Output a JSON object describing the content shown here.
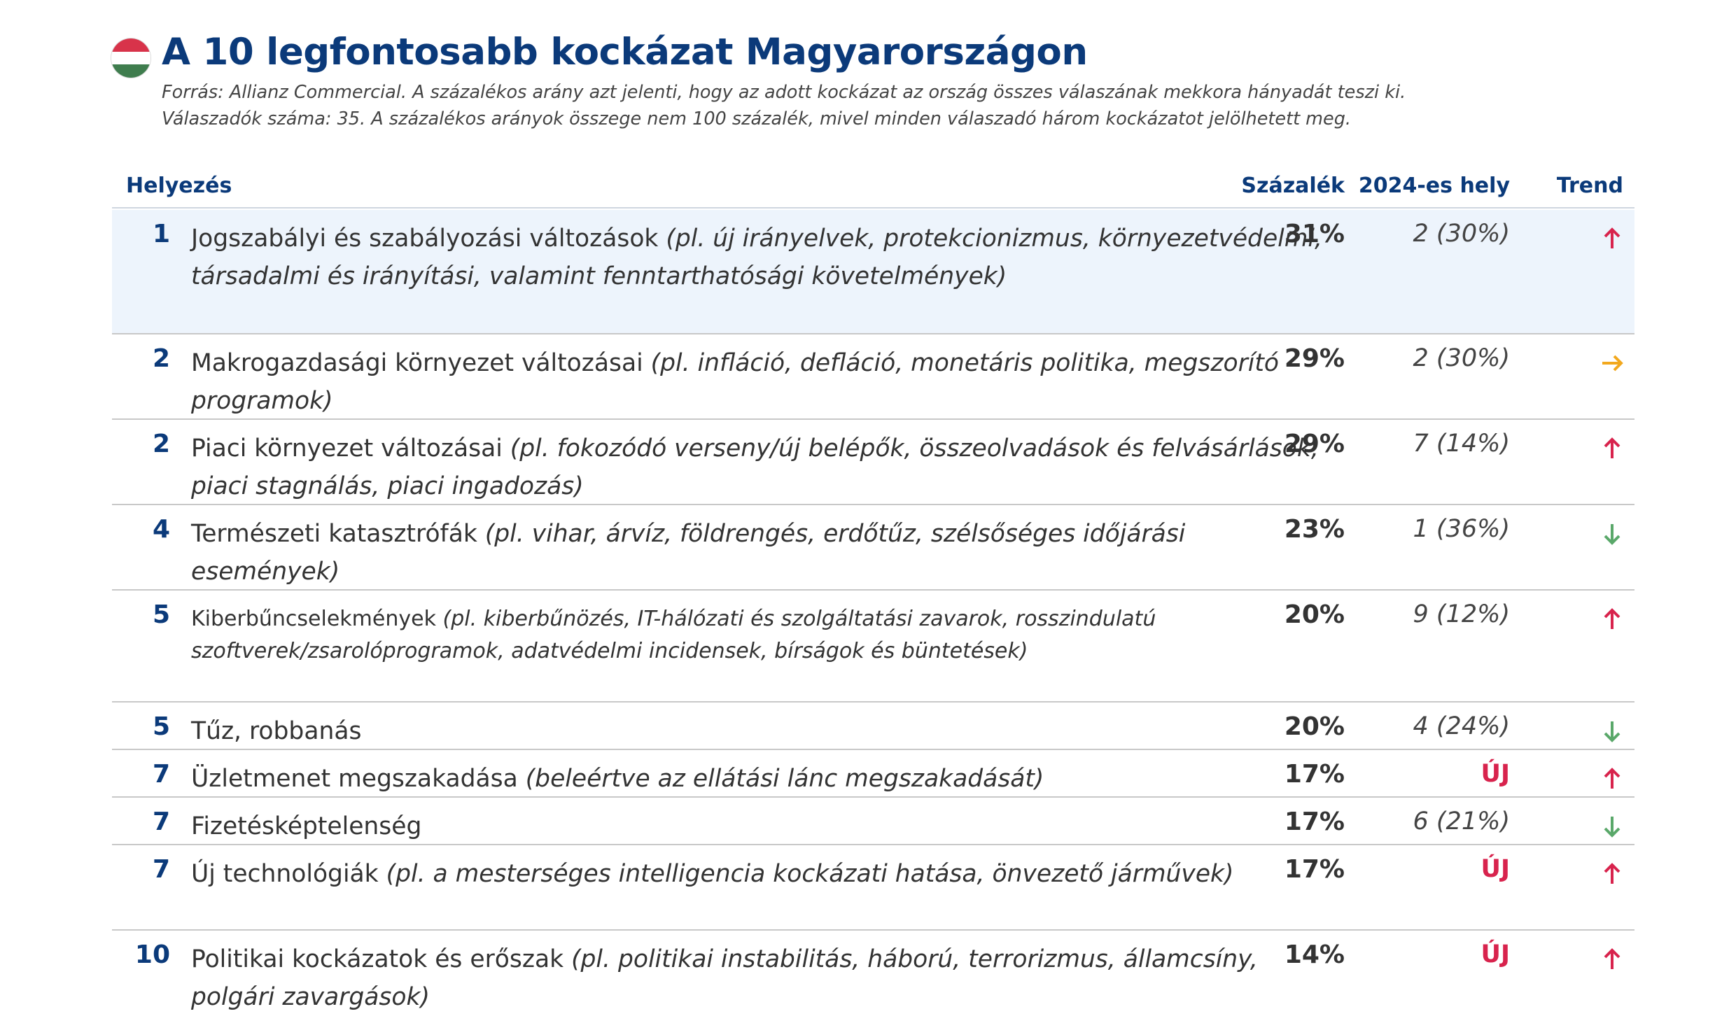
{
  "header": {
    "title": "A 10 legfontosabb kockázat Magyarországon",
    "source_line1": "Forrás: Allianz Commercial. A százalékos arány azt jelenti, hogy az adott kockázat az ország összes válaszának mekkora  hányadát teszi ki.",
    "source_line2": "Válaszadók száma: 35. A százalékos arányok összege nem 100 százalék, mivel minden válaszadó három kockázatot jelölhetett meg."
  },
  "colors": {
    "navy": "#0b3a7a",
    "up": "#d8234d",
    "right": "#f2a81d",
    "down": "#5aa86a",
    "highlight": "#edf4fc"
  },
  "table": {
    "columns": {
      "rank": "Helyezés",
      "pct": "Százalék",
      "prev": "2024-es hely",
      "trend": "Trend"
    },
    "rows": [
      {
        "rank": "1",
        "name": "Jogszabályi és szabályozási változások",
        "example": "(pl. új irányelvek, protekcionizmus, környezetvédelmi, társadalmi és irányítási, valamint fenntarthatósági követelmények)",
        "pct": "31%",
        "prev": "2 (30%)",
        "trend": "up-arrow-icon"
      },
      {
        "rank": "2",
        "name": "Makrogazdasági környezet változásai",
        "example": "(pl. infláció, defláció, monetáris politika, megszorító programok)",
        "pct": "29%",
        "prev": "2 (30%)",
        "trend": "right-arrow-icon"
      },
      {
        "rank": "2",
        "name": "Piaci környezet változásai",
        "example": "(pl. fokozódó verseny/új belépők, összeolvadások és felvásárlások, piaci stagnálás, piaci ingadozás)",
        "pct": "29%",
        "prev": "7 (14%)",
        "trend": "up-arrow-icon"
      },
      {
        "rank": "4",
        "name": "Természeti katasztrófák",
        "example": "(pl. vihar, árvíz, földrengés, erdőtűz, szélsőséges időjárási események)",
        "pct": "23%",
        "prev": "1 (36%)",
        "trend": "down-arrow-icon"
      },
      {
        "rank": "5",
        "name": "Kiberbűncselekmények",
        "example": "(pl. kiberbűnözés, IT-hálózati és szolgáltatási zavarok, rosszindulatú szoftverek/zsarolóprogramok, adatvédelmi incidensek, bírságok és büntetések)",
        "pct": "20%",
        "prev": "9 (12%)",
        "trend": "up-arrow-icon"
      },
      {
        "rank": "5",
        "name": "Tűz, robbanás",
        "example": "",
        "pct": "20%",
        "prev": "4 (24%)",
        "trend": "down-arrow-icon"
      },
      {
        "rank": "7",
        "name": "Üzletmenet megszakadása",
        "example": "(beleértve az ellátási lánc megszakadását)",
        "pct": "17%",
        "prev": "ÚJ",
        "trend": "up-arrow-icon"
      },
      {
        "rank": "7",
        "name": "Fizetésképtelenség",
        "example": "",
        "pct": "17%",
        "prev": "6 (21%)",
        "trend": "down-arrow-icon"
      },
      {
        "rank": "7",
        "name": "Új technológiák",
        "example": "(pl. a mesterséges intelligencia kockázati hatása, önvezető járművek)",
        "pct": "17%",
        "prev": "ÚJ",
        "trend": "up-arrow-icon"
      },
      {
        "rank": "10",
        "name": "Politikai kockázatok és erőszak",
        "example": "(pl. politikai instabilitás, háború, terrorizmus, államcsíny, polgári zavargások)",
        "pct": "14%",
        "prev": "ÚJ",
        "trend": "up-arrow-icon"
      }
    ]
  }
}
